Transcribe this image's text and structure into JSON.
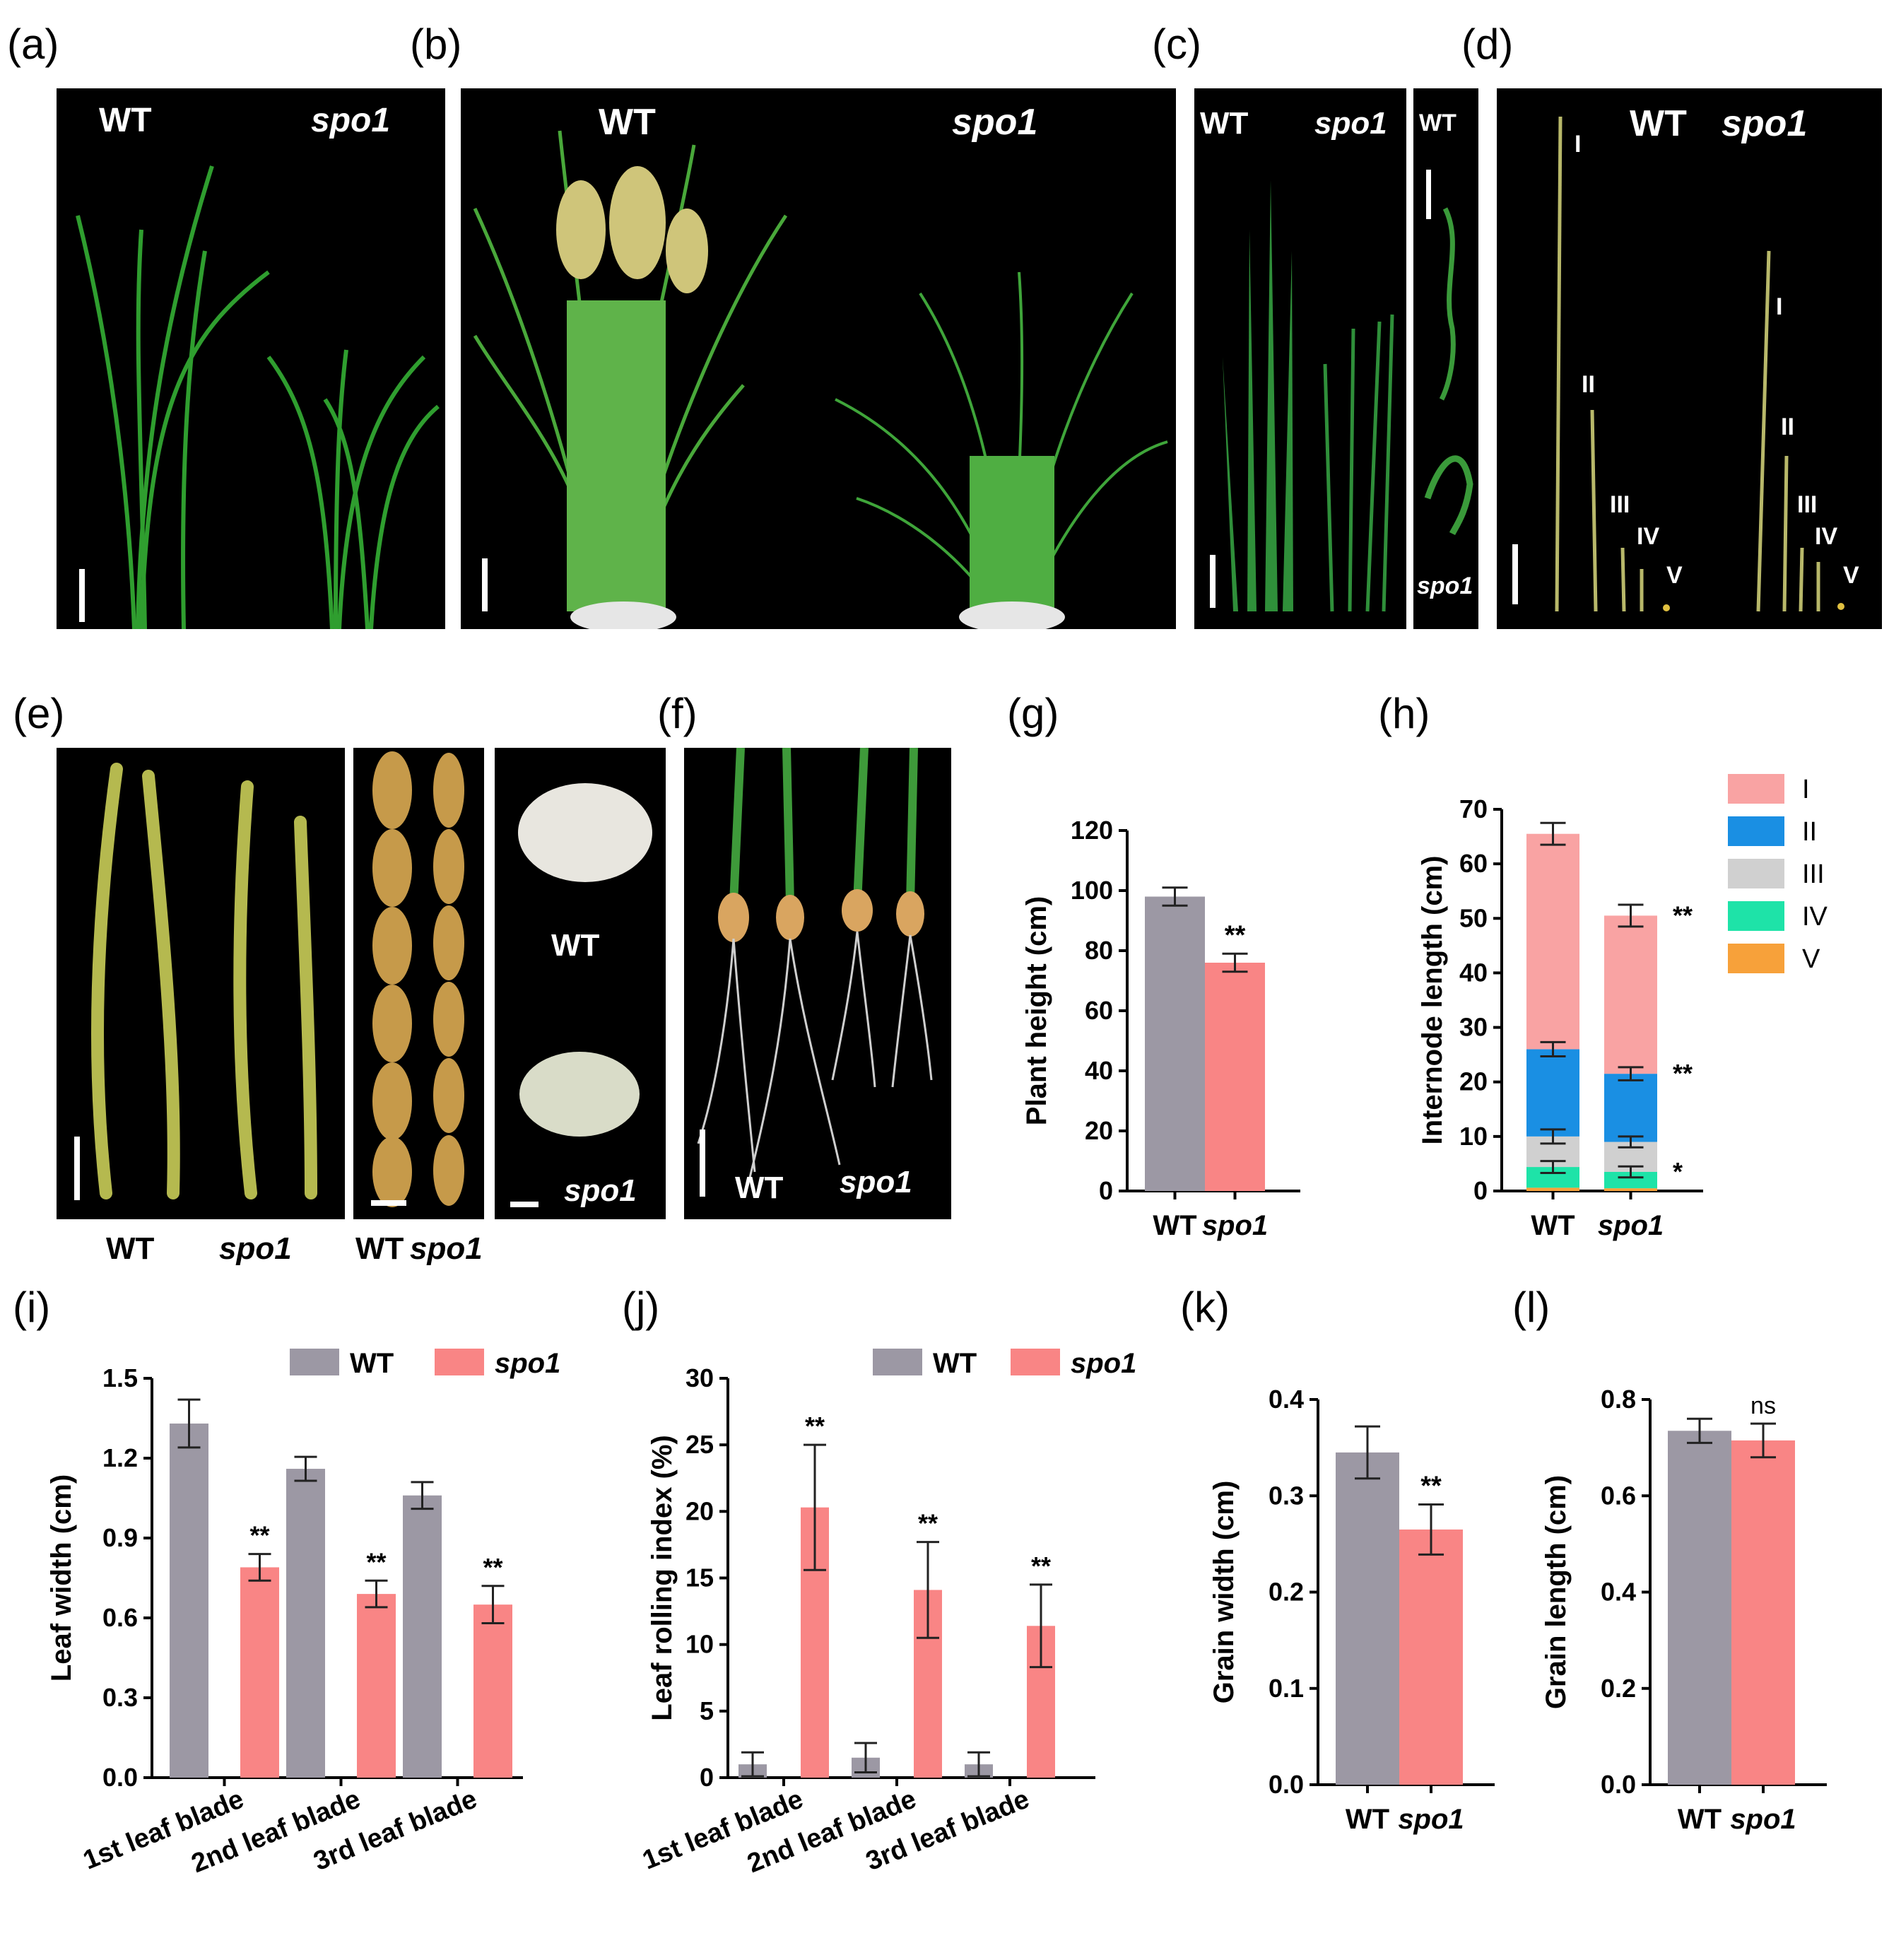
{
  "panel_labels": [
    "(a)",
    "(b)",
    "(c)",
    "(d)",
    "(e)",
    "(f)",
    "(g)",
    "(h)",
    "(i)",
    "(j)",
    "(k)",
    "(l)"
  ],
  "photos": {
    "a": {
      "left": "WT",
      "right": "spo1"
    },
    "b": {
      "left": "WT",
      "right": "spo1"
    },
    "c": {
      "left": "WT",
      "right": "spo1",
      "cs_top": "WT",
      "cs_bottom": "spo1"
    },
    "d": {
      "left": "WT",
      "right": "spo1",
      "internodes": [
        "I",
        "II",
        "III",
        "IV",
        "V"
      ]
    },
    "e": {
      "seed_wt": "WT",
      "seed_spo1": "spo1",
      "caption_wt": "WT",
      "caption_spo1": "spo1",
      "caption_wt2": "WT",
      "caption_spo1_2": "spo1"
    },
    "f": {
      "left": "WT",
      "right": "spo1"
    }
  },
  "colors": {
    "wt": "#9c98a4",
    "spo1": "#f98585",
    "I": "#f9a3a3",
    "II": "#1a8fe3",
    "III": "#d0d0d0",
    "IV": "#1ee3a8",
    "V": "#f7a13a"
  },
  "chart_data": [
    {
      "panel": "g",
      "type": "bar",
      "ylabel": "Plant height (cm)",
      "categories": [
        "WT",
        "spo1"
      ],
      "values": [
        98,
        76
      ],
      "errors": [
        3,
        3
      ],
      "ylim": [
        0,
        120
      ],
      "yticks": [
        0,
        20,
        40,
        60,
        80,
        100,
        120
      ],
      "annotations": [
        "",
        "**"
      ]
    },
    {
      "panel": "h",
      "type": "bar",
      "stacked": true,
      "ylabel": "Internode length (cm)",
      "categories": [
        "WT",
        "spo1"
      ],
      "ylim": [
        0,
        70
      ],
      "yticks": [
        0,
        10,
        20,
        30,
        40,
        50,
        60,
        70
      ],
      "series": [
        {
          "name": "V",
          "values": [
            0.6,
            0.5
          ]
        },
        {
          "name": "IV",
          "values": [
            3.8,
            3
          ]
        },
        {
          "name": "III",
          "values": [
            5.6,
            5.5
          ]
        },
        {
          "name": "II",
          "values": [
            16,
            12.5
          ]
        },
        {
          "name": "I",
          "values": [
            39.5,
            29
          ]
        }
      ],
      "cumulative_errors": [
        {
          "level": [
            4.4,
            3.5
          ],
          "err": [
            1.1,
            1
          ]
        },
        {
          "level": [
            10,
            9
          ],
          "err": [
            1.3,
            1
          ]
        },
        {
          "level": [
            26,
            21.5
          ],
          "err": [
            1.3,
            1.2
          ]
        },
        {
          "level": [
            65.5,
            50.5
          ],
          "err": [
            2,
            2
          ]
        }
      ],
      "legend": [
        "I",
        "II",
        "III",
        "IV",
        "V"
      ],
      "annotations": [
        "**",
        "**",
        "*"
      ]
    },
    {
      "panel": "i",
      "type": "bar",
      "ylabel": "Leaf width (cm)",
      "categories": [
        "1st leaf blade",
        "2nd leaf blade",
        "3rd leaf  blade"
      ],
      "series": [
        {
          "name": "WT",
          "values": [
            1.33,
            1.16,
            1.06
          ],
          "errors": [
            0.09,
            0.045,
            0.05
          ]
        },
        {
          "name": "spo1",
          "values": [
            0.79,
            0.69,
            0.65
          ],
          "errors": [
            0.05,
            0.05,
            0.07
          ]
        }
      ],
      "ylim": [
        0,
        1.5
      ],
      "yticks": [
        "0.0",
        "0.3",
        "0.6",
        "0.9",
        "1.2",
        "1.5"
      ],
      "annotations": [
        "**",
        "**",
        "**"
      ]
    },
    {
      "panel": "j",
      "type": "bar",
      "ylabel": "Leaf rolling index (%)",
      "categories": [
        "1st leaf  blade",
        "2nd leaf  blade",
        "3rd leaf  blade"
      ],
      "series": [
        {
          "name": "WT",
          "values": [
            1,
            1.5,
            1
          ],
          "errors": [
            0.9,
            1.1,
            0.9
          ]
        },
        {
          "name": "spo1",
          "values": [
            20.3,
            14.1,
            11.4
          ],
          "errors": [
            4.7,
            3.6,
            3.1
          ]
        }
      ],
      "ylim": [
        0,
        30
      ],
      "yticks": [
        "0",
        "5",
        "10",
        "15",
        "20",
        "25",
        "30"
      ],
      "annotations": [
        "**",
        "**",
        "**"
      ]
    },
    {
      "panel": "k",
      "type": "bar",
      "ylabel": "Grain width (cm)",
      "categories": [
        "WT",
        "spo1"
      ],
      "values": [
        0.345,
        0.265
      ],
      "errors": [
        0.027,
        0.026
      ],
      "ylim": [
        0,
        0.4
      ],
      "yticks": [
        "0.0",
        "0.1",
        "0.2",
        "0.3",
        "0.4"
      ],
      "annotations": [
        "",
        "**"
      ]
    },
    {
      "panel": "l",
      "type": "bar",
      "ylabel": "Grain length (cm)",
      "categories": [
        "WT",
        "spo1"
      ],
      "values": [
        0.735,
        0.715
      ],
      "errors": [
        0.025,
        0.035
      ],
      "ylim": [
        0,
        0.8
      ],
      "yticks": [
        "0.0",
        "0.2",
        "0.4",
        "0.6",
        "0.8"
      ],
      "annotations": [
        "",
        "ns"
      ]
    }
  ]
}
